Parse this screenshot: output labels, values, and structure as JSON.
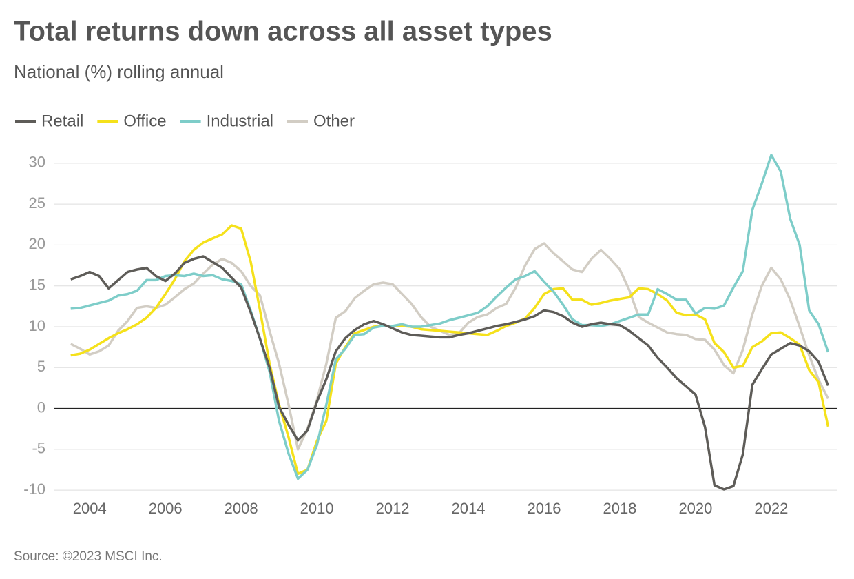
{
  "chart_data": {
    "type": "line",
    "title": "Total returns down across all asset types",
    "subtitle": "National (%) rolling annual",
    "source": "Source: ©2023 MSCI Inc.",
    "x": [
      2003.5,
      2003.75,
      2004,
      2004.25,
      2004.5,
      2004.75,
      2005,
      2005.25,
      2005.5,
      2005.75,
      2006,
      2006.25,
      2006.5,
      2006.75,
      2007,
      2007.25,
      2007.5,
      2007.75,
      2008,
      2008.25,
      2008.5,
      2008.75,
      2009,
      2009.25,
      2009.5,
      2009.75,
      2010,
      2010.25,
      2010.5,
      2010.75,
      2011,
      2011.25,
      2011.5,
      2011.75,
      2012,
      2012.25,
      2012.5,
      2012.75,
      2013,
      2013.25,
      2013.5,
      2013.75,
      2014,
      2014.25,
      2014.5,
      2014.75,
      2015,
      2015.25,
      2015.5,
      2015.75,
      2016,
      2016.25,
      2016.5,
      2016.75,
      2017,
      2017.25,
      2017.5,
      2017.75,
      2018,
      2018.25,
      2018.5,
      2018.75,
      2019,
      2019.25,
      2019.5,
      2019.75,
      2020,
      2020.25,
      2020.5,
      2020.75,
      2021,
      2021.25,
      2021.5,
      2021.75,
      2022,
      2022.25,
      2022.5,
      2022.75,
      2023,
      2023.25,
      2023.5
    ],
    "series": [
      {
        "name": "Retail",
        "color": "#5e5c58",
        "values": [
          15.8,
          16.2,
          16.7,
          16.2,
          14.7,
          15.7,
          16.7,
          17.0,
          17.2,
          16.2,
          15.6,
          16.5,
          17.8,
          18.3,
          18.6,
          17.9,
          17.2,
          16.0,
          14.8,
          11.8,
          8.5,
          5.0,
          0.2,
          -2.0,
          -3.9,
          -2.7,
          0.8,
          3.6,
          7.0,
          8.6,
          9.6,
          10.3,
          10.7,
          10.3,
          9.8,
          9.3,
          9.0,
          8.9,
          8.8,
          8.7,
          8.7,
          9.0,
          9.2,
          9.5,
          9.8,
          10.1,
          10.3,
          10.6,
          10.9,
          11.3,
          12.0,
          11.8,
          11.3,
          10.5,
          10.0,
          10.3,
          10.5,
          10.3,
          10.2,
          9.5,
          8.6,
          7.7,
          6.2,
          5.0,
          3.7,
          2.7,
          1.7,
          -2.3,
          -9.4,
          -9.9,
          -9.5,
          -5.6,
          2.9,
          4.8,
          6.6,
          7.3,
          8.0,
          7.7,
          7.0,
          5.7,
          2.8
        ]
      },
      {
        "name": "Office",
        "color": "#f5e11b",
        "values": [
          6.5,
          6.7,
          7.2,
          7.9,
          8.6,
          9.2,
          9.7,
          10.3,
          11.1,
          12.3,
          14.0,
          15.8,
          18.0,
          19.4,
          20.3,
          20.8,
          21.3,
          22.4,
          22.0,
          18.0,
          12.0,
          5.5,
          0.5,
          -3.5,
          -8.0,
          -7.5,
          -4.0,
          -1.5,
          5.5,
          7.5,
          9.2,
          9.6,
          10.0,
          10.1,
          10.1,
          10.1,
          10.0,
          9.7,
          9.6,
          9.5,
          9.4,
          9.3,
          9.2,
          9.1,
          9.0,
          9.5,
          10.1,
          10.5,
          11.0,
          12.3,
          14.0,
          14.6,
          14.7,
          13.3,
          13.3,
          12.7,
          12.9,
          13.2,
          13.4,
          13.6,
          14.7,
          14.6,
          14.0,
          13.2,
          11.7,
          11.4,
          11.5,
          10.9,
          8.0,
          6.9,
          5.0,
          5.2,
          7.5,
          8.2,
          9.2,
          9.3,
          8.6,
          7.8,
          4.7,
          3.2,
          -2.2
        ]
      },
      {
        "name": "Industrial",
        "color": "#7ecdc9",
        "values": [
          12.2,
          12.3,
          12.6,
          12.9,
          13.2,
          13.8,
          14.0,
          14.4,
          15.7,
          15.7,
          16.2,
          16.3,
          16.2,
          16.5,
          16.2,
          16.3,
          15.8,
          15.6,
          15.2,
          12.0,
          8.5,
          4.5,
          -1.5,
          -5.5,
          -8.6,
          -7.5,
          -4.5,
          0.5,
          6.0,
          7.3,
          9.0,
          9.1,
          9.9,
          10.1,
          10.1,
          10.3,
          10.0,
          10.0,
          10.2,
          10.4,
          10.8,
          11.1,
          11.4,
          11.7,
          12.5,
          13.7,
          14.8,
          15.8,
          16.2,
          16.8,
          15.5,
          14.3,
          12.7,
          10.9,
          10.2,
          10.2,
          10.1,
          10.3,
          10.7,
          11.1,
          11.5,
          11.5,
          14.6,
          14.0,
          13.3,
          13.3,
          11.6,
          12.3,
          12.2,
          12.6,
          14.8,
          16.8,
          24.3,
          27.5,
          31.0,
          29.0,
          23.2,
          20.0,
          12.0,
          10.3,
          6.9
        ]
      },
      {
        "name": "Other",
        "color": "#d2cdc4",
        "values": [
          7.9,
          7.3,
          6.6,
          7.0,
          7.7,
          9.5,
          10.7,
          12.3,
          12.5,
          12.3,
          12.7,
          13.6,
          14.6,
          15.3,
          16.5,
          17.6,
          18.3,
          17.8,
          16.8,
          15.0,
          13.8,
          9.5,
          5.5,
          0.5,
          -5.0,
          -2.5,
          1.0,
          5.5,
          11.1,
          11.9,
          13.5,
          14.4,
          15.2,
          15.4,
          15.2,
          14.0,
          12.8,
          11.2,
          10.0,
          9.5,
          9.0,
          9.2,
          10.5,
          11.2,
          11.5,
          12.3,
          12.8,
          14.8,
          17.5,
          19.5,
          20.2,
          19.0,
          18.0,
          17.0,
          16.7,
          18.3,
          19.4,
          18.3,
          17.0,
          14.5,
          11.2,
          10.5,
          9.9,
          9.3,
          9.1,
          9.0,
          8.5,
          8.4,
          7.2,
          5.3,
          4.3,
          7.2,
          11.5,
          15.0,
          17.2,
          15.8,
          13.3,
          10.0,
          6.5,
          3.5,
          1.2
        ]
      }
    ],
    "xlim": [
      2003.05,
      2023.73
    ],
    "xticks": [
      2004,
      2006,
      2008,
      2010,
      2012,
      2014,
      2016,
      2018,
      2020,
      2022
    ],
    "ylim": [
      -11,
      31
    ],
    "yticks": [
      -10,
      -5,
      0,
      5,
      10,
      15,
      20,
      25,
      30
    ],
    "grid": true
  }
}
